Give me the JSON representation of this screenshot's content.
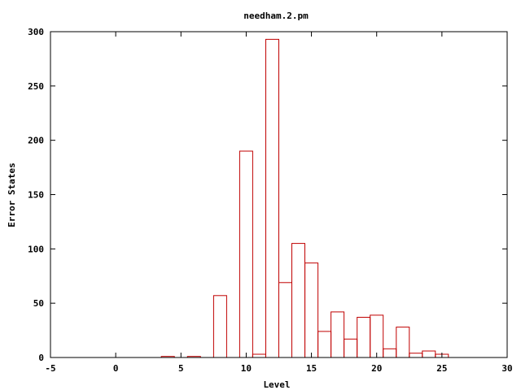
{
  "chart_data": {
    "type": "bar",
    "title": "needham.2.pm",
    "xlabel": "Level",
    "ylabel": "Error States",
    "xlim": [
      -5,
      30
    ],
    "ylim": [
      0,
      300
    ],
    "xticks": [
      -5,
      0,
      5,
      10,
      15,
      20,
      25,
      30
    ],
    "yticks": [
      0,
      50,
      100,
      150,
      200,
      250,
      300
    ],
    "grid": false,
    "legend": "none",
    "bar_color": "#c00000",
    "bar_width": 1,
    "x": [
      4,
      6,
      8,
      10,
      11,
      12,
      13,
      14,
      15,
      16,
      17,
      18,
      19,
      20,
      21,
      22,
      23,
      24,
      25
    ],
    "values": [
      1,
      1,
      57,
      190,
      3,
      293,
      69,
      105,
      87,
      24,
      42,
      17,
      37,
      39,
      8,
      28,
      4,
      6,
      3
    ]
  }
}
